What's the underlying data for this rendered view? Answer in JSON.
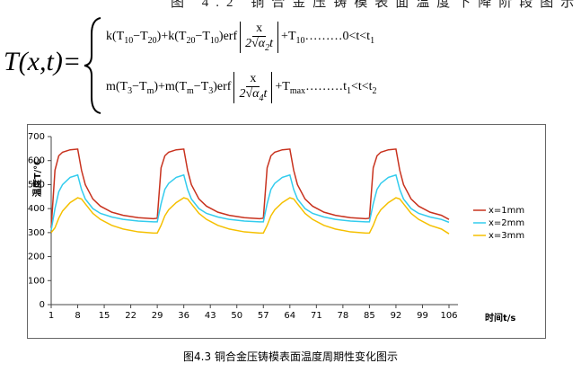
{
  "top_caption": "图 4.2 铜合金压铸模表面温度下降阶段图示",
  "formula": {
    "lhs": "T(x,t)=",
    "lines": [
      {
        "prefix": [
          {
            "text": "k(T"
          },
          {
            "sub": "10"
          },
          {
            "text": "−T"
          },
          {
            "sub": "20"
          },
          {
            "text": ")+k(T"
          },
          {
            "sub": "20"
          },
          {
            "text": "−T"
          },
          {
            "sub": "10"
          },
          {
            "text": ")erf"
          }
        ],
        "numerator": "x",
        "denominator": [
          {
            "text": "2√α"
          },
          {
            "sub": "2"
          },
          {
            "text": "t"
          }
        ],
        "suffix": [
          {
            "text": "+T"
          },
          {
            "sub": "10"
          },
          {
            "text": "………0<t<t"
          },
          {
            "sub": "1"
          }
        ]
      },
      {
        "prefix": [
          {
            "text": "m(T"
          },
          {
            "sub": "3"
          },
          {
            "text": "−T"
          },
          {
            "sub": "m"
          },
          {
            "text": ")+m(T"
          },
          {
            "sub": "m"
          },
          {
            "text": "−T"
          },
          {
            "sub": "3"
          },
          {
            "text": ")erf"
          }
        ],
        "numerator": "x",
        "denominator": [
          {
            "text": "2√α"
          },
          {
            "sub": "4"
          },
          {
            "text": "t"
          }
        ],
        "suffix": [
          {
            "text": "+T"
          },
          {
            "sub": "max"
          },
          {
            "text": "………t"
          },
          {
            "sub": "1"
          },
          {
            "text": "<t<t"
          },
          {
            "sub": "2"
          }
        ]
      }
    ]
  },
  "chart_data": {
    "type": "line",
    "ylabel": "温度T/℃",
    "xlabel": "时间t/s",
    "x": [
      1,
      2,
      3,
      4,
      6,
      8,
      9,
      10,
      12,
      14,
      17,
      20,
      24,
      28,
      29,
      30,
      31,
      32,
      34,
      36,
      37,
      38,
      40,
      42,
      45,
      48,
      52,
      56,
      57,
      58,
      59,
      60,
      62,
      64,
      65,
      66,
      68,
      70,
      73,
      76,
      80,
      84,
      85,
      86,
      87,
      88,
      90,
      92,
      93,
      94,
      96,
      98,
      101,
      104,
      106
    ],
    "series": [
      {
        "name": "x=1mm",
        "color": "#c8321e",
        "values": [
          320,
          560,
          620,
          635,
          645,
          648,
          560,
          500,
          440,
          410,
          385,
          372,
          362,
          358,
          360,
          570,
          620,
          635,
          645,
          648,
          560,
          500,
          440,
          410,
          385,
          372,
          362,
          358,
          360,
          570,
          620,
          635,
          645,
          648,
          560,
          500,
          440,
          410,
          385,
          372,
          362,
          358,
          360,
          570,
          620,
          635,
          645,
          648,
          560,
          500,
          440,
          410,
          385,
          372,
          355
        ]
      },
      {
        "name": "x=2mm",
        "color": "#33ccee",
        "values": [
          310,
          400,
          470,
          500,
          530,
          540,
          480,
          440,
          400,
          380,
          365,
          355,
          348,
          345,
          345,
          420,
          480,
          505,
          530,
          540,
          480,
          440,
          400,
          380,
          365,
          355,
          348,
          345,
          345,
          420,
          480,
          505,
          530,
          540,
          480,
          440,
          400,
          380,
          365,
          355,
          348,
          345,
          345,
          420,
          480,
          505,
          530,
          540,
          480,
          440,
          400,
          380,
          365,
          355,
          343
        ]
      },
      {
        "name": "x=3mm",
        "color": "#f5c000",
        "values": [
          300,
          320,
          360,
          390,
          425,
          445,
          440,
          420,
          380,
          355,
          330,
          315,
          303,
          298,
          298,
          330,
          370,
          395,
          425,
          445,
          440,
          420,
          380,
          355,
          330,
          315,
          303,
          298,
          298,
          330,
          370,
          395,
          425,
          445,
          440,
          420,
          380,
          355,
          330,
          315,
          303,
          298,
          298,
          330,
          370,
          395,
          425,
          445,
          440,
          420,
          380,
          355,
          330,
          315,
          295
        ]
      }
    ],
    "xlim": [
      1,
      106
    ],
    "xticks": [
      1,
      8,
      15,
      22,
      29,
      36,
      43,
      50,
      57,
      64,
      71,
      78,
      85,
      92,
      99,
      106
    ],
    "ylim": [
      0,
      700
    ],
    "yticks": [
      0,
      100,
      200,
      300,
      400,
      500,
      600,
      700
    ],
    "legend": "right"
  },
  "caption": "图4.3 铜合金压铸模表面温度周期性变化图示"
}
